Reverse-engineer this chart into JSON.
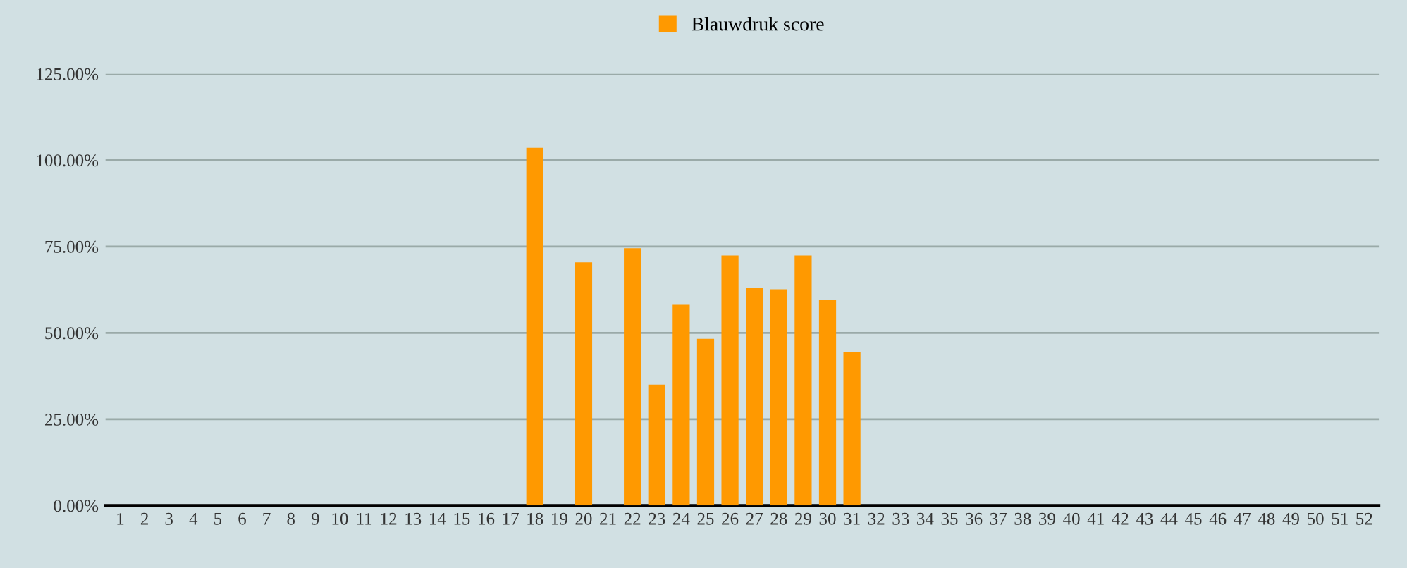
{
  "chart_data": {
    "type": "bar",
    "categories": [
      "1",
      "2",
      "3",
      "4",
      "5",
      "6",
      "7",
      "8",
      "9",
      "10",
      "11",
      "12",
      "13",
      "14",
      "15",
      "16",
      "17",
      "18",
      "19",
      "20",
      "21",
      "22",
      "23",
      "24",
      "25",
      "26",
      "27",
      "28",
      "29",
      "30",
      "31",
      "32",
      "33",
      "34",
      "35",
      "36",
      "37",
      "38",
      "39",
      "40",
      "41",
      "42",
      "43",
      "44",
      "45",
      "46",
      "47",
      "48",
      "49",
      "50",
      "51",
      "52"
    ],
    "series": [
      {
        "name": "Blauwdruk score",
        "color": "#ff9900",
        "values": [
          0,
          0,
          0,
          0,
          0,
          0,
          0,
          0,
          0,
          0,
          0,
          0,
          0,
          0,
          0,
          0,
          0,
          103.6,
          0,
          70.4,
          0,
          74.5,
          35.0,
          58.1,
          48.3,
          72.4,
          63.0,
          62.6,
          72.4,
          59.5,
          44.5,
          0,
          0,
          0,
          0,
          0,
          0,
          0,
          0,
          0,
          0,
          0,
          0,
          0,
          0,
          0,
          0,
          0,
          0,
          0,
          0,
          0
        ]
      }
    ],
    "ylim": [
      0,
      125
    ],
    "yticks": [
      {
        "value": 0,
        "label": "0.00%"
      },
      {
        "value": 25,
        "label": "25.00%"
      },
      {
        "value": 50,
        "label": "50.00%"
      },
      {
        "value": 75,
        "label": "75.00%"
      },
      {
        "value": 100,
        "label": "100.00%"
      },
      {
        "value": 125,
        "label": "125.00%"
      }
    ],
    "grid": "y",
    "legend": "top"
  }
}
